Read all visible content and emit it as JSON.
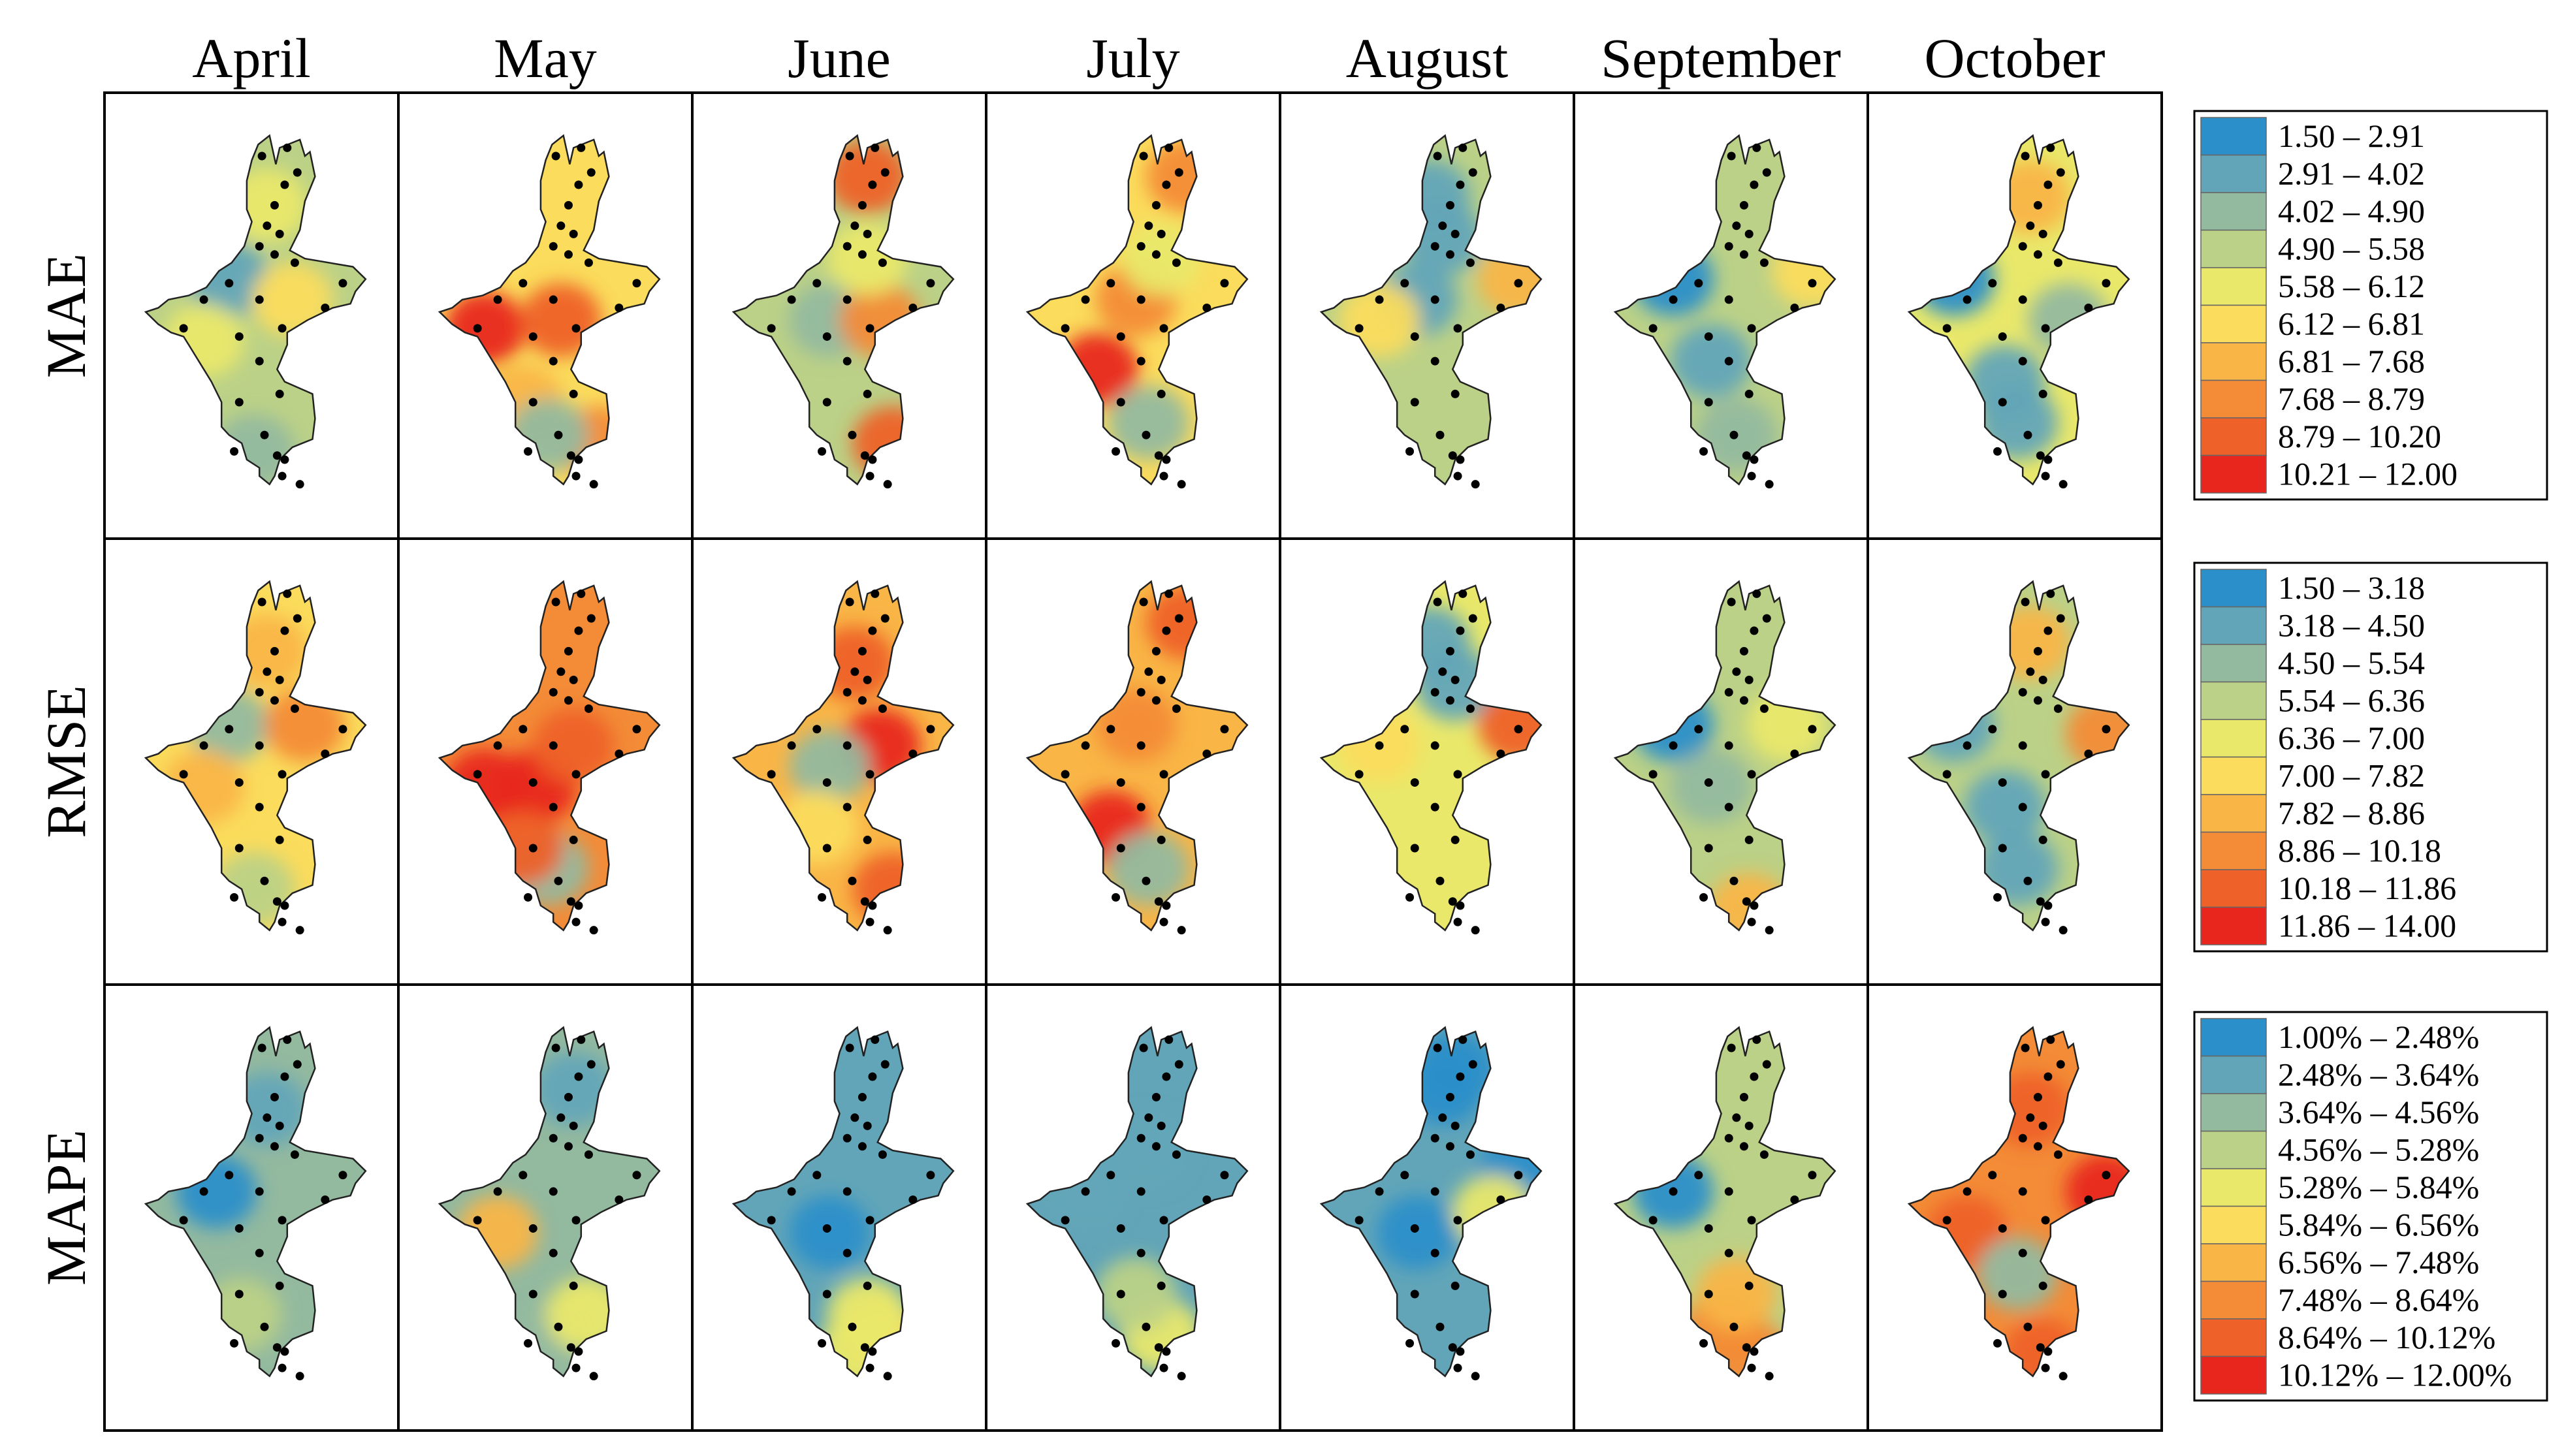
{
  "months": [
    "April",
    "May",
    "June",
    "July",
    "August",
    "September",
    "October"
  ],
  "metrics": [
    {
      "name": "MAE",
      "legend": [
        "1.50 – 2.91",
        "2.91 – 4.02",
        "4.02 – 4.90",
        "4.90 – 5.58",
        "5.58 – 6.12",
        "6.12 – 6.81",
        "6.81 – 7.68",
        "7.68 – 8.79",
        "8.79 – 10.20",
        "10.21 – 12.00"
      ]
    },
    {
      "name": "RMSE",
      "legend": [
        "1.50 – 3.18",
        "3.18 – 4.50",
        "4.50 – 5.54",
        "5.54 – 6.36",
        "6.36 – 7.00",
        "7.00 – 7.82",
        "7.82 – 8.86",
        "8.86 – 10.18",
        "10.18 – 11.86",
        "11.86 – 14.00"
      ]
    },
    {
      "name": "MAPE",
      "legend": [
        "1.00% – 2.48%",
        "2.48% – 3.64%",
        "3.64% – 4.56%",
        "4.56% – 5.28%",
        "5.28% – 5.84%",
        "5.84% – 6.56%",
        "6.56% – 7.48%",
        "7.48% – 8.64%",
        "8.64% – 10.12%",
        "10.12% – 12.00%"
      ]
    }
  ],
  "class_colors": [
    "#2b8fc9",
    "#62a5b8",
    "#93b99f",
    "#bbd187",
    "#e9e86a",
    "#fbdc5c",
    "#f9b546",
    "#f38b37",
    "#ee6128",
    "#e8261e"
  ],
  "base_class": [
    [
      3,
      5,
      3,
      5,
      3,
      3,
      4
    ],
    [
      5,
      7,
      6,
      6,
      4,
      3,
      3
    ],
    [
      2,
      2,
      1,
      1,
      1,
      3,
      7
    ]
  ],
  "hotspots": [
    [
      [
        [
          0.4,
          0.4,
          1
        ],
        [
          0.55,
          0.22,
          4
        ],
        [
          0.5,
          0.82,
          2
        ],
        [
          0.65,
          0.45,
          5
        ],
        [
          0.3,
          0.55,
          4
        ]
      ],
      [
        [
          0.25,
          0.52,
          9
        ],
        [
          0.55,
          0.5,
          8
        ],
        [
          0.7,
          0.8,
          7
        ],
        [
          0.4,
          0.7,
          6
        ],
        [
          0.5,
          0.78,
          2
        ]
      ],
      [
        [
          0.6,
          0.15,
          8
        ],
        [
          0.7,
          0.8,
          8
        ],
        [
          0.45,
          0.5,
          2
        ],
        [
          0.65,
          0.5,
          7
        ],
        [
          0.6,
          0.35,
          4
        ]
      ],
      [
        [
          0.35,
          0.62,
          9
        ],
        [
          0.5,
          0.45,
          7
        ],
        [
          0.55,
          0.75,
          2
        ],
        [
          0.7,
          0.15,
          7
        ],
        [
          0.6,
          0.35,
          4
        ]
      ],
      [
        [
          0.5,
          0.2,
          1
        ],
        [
          0.55,
          0.3,
          1
        ],
        [
          0.45,
          0.45,
          1
        ],
        [
          0.85,
          0.4,
          6
        ],
        [
          0.3,
          0.5,
          5
        ]
      ],
      [
        [
          0.3,
          0.4,
          0
        ],
        [
          0.45,
          0.6,
          1
        ],
        [
          0.55,
          0.78,
          2
        ],
        [
          0.85,
          0.38,
          5
        ]
      ],
      [
        [
          0.25,
          0.4,
          0
        ],
        [
          0.45,
          0.65,
          1
        ],
        [
          0.5,
          0.75,
          1
        ],
        [
          0.55,
          0.2,
          6
        ],
        [
          0.7,
          0.5,
          2
        ]
      ]
    ],
    [
      [
        [
          0.4,
          0.4,
          2
        ],
        [
          0.55,
          0.22,
          6
        ],
        [
          0.7,
          0.4,
          7
        ],
        [
          0.5,
          0.8,
          3
        ],
        [
          0.3,
          0.55,
          6
        ]
      ],
      [
        [
          0.25,
          0.55,
          9
        ],
        [
          0.45,
          0.55,
          9
        ],
        [
          0.6,
          0.45,
          8
        ],
        [
          0.5,
          0.75,
          2
        ],
        [
          0.4,
          0.7,
          8
        ]
      ],
      [
        [
          0.55,
          0.25,
          8
        ],
        [
          0.65,
          0.45,
          9
        ],
        [
          0.7,
          0.8,
          8
        ],
        [
          0.45,
          0.5,
          2
        ],
        [
          0.4,
          0.65,
          5
        ]
      ],
      [
        [
          0.4,
          0.65,
          9
        ],
        [
          0.5,
          0.4,
          7
        ],
        [
          0.55,
          0.75,
          2
        ],
        [
          0.7,
          0.15,
          8
        ]
      ],
      [
        [
          0.5,
          0.2,
          1
        ],
        [
          0.6,
          0.3,
          1
        ],
        [
          0.85,
          0.4,
          8
        ],
        [
          0.45,
          0.55,
          4
        ],
        [
          0.3,
          0.45,
          5
        ]
      ],
      [
        [
          0.3,
          0.4,
          0
        ],
        [
          0.45,
          0.55,
          2
        ],
        [
          0.6,
          0.85,
          6
        ],
        [
          0.75,
          0.4,
          4
        ]
      ],
      [
        [
          0.25,
          0.4,
          1
        ],
        [
          0.45,
          0.6,
          1
        ],
        [
          0.5,
          0.75,
          1
        ],
        [
          0.85,
          0.42,
          7
        ],
        [
          0.55,
          0.2,
          6
        ]
      ]
    ],
    [
      [
        [
          0.35,
          0.45,
          0
        ],
        [
          0.55,
          0.25,
          1
        ],
        [
          0.45,
          0.75,
          3
        ]
      ],
      [
        [
          0.3,
          0.55,
          6
        ],
        [
          0.5,
          0.8,
          2
        ],
        [
          0.6,
          0.2,
          1
        ],
        [
          0.65,
          0.75,
          4
        ]
      ],
      [
        [
          0.45,
          0.55,
          0
        ],
        [
          0.65,
          0.8,
          5
        ],
        [
          0.55,
          0.85,
          4
        ],
        [
          0.6,
          0.75,
          4
        ]
      ],
      [
        [
          0.3,
          0.45,
          1
        ],
        [
          0.55,
          0.35,
          1
        ],
        [
          0.6,
          0.8,
          4
        ],
        [
          0.5,
          0.7,
          3
        ]
      ],
      [
        [
          0.55,
          0.2,
          0
        ],
        [
          0.6,
          0.15,
          0
        ],
        [
          0.45,
          0.55,
          0
        ],
        [
          0.85,
          0.4,
          0
        ],
        [
          0.75,
          0.5,
          4
        ]
      ],
      [
        [
          0.3,
          0.45,
          0
        ],
        [
          0.5,
          0.78,
          7
        ],
        [
          0.6,
          0.85,
          7
        ],
        [
          0.55,
          0.7,
          6
        ]
      ],
      [
        [
          0.3,
          0.55,
          8
        ],
        [
          0.55,
          0.25,
          8
        ],
        [
          0.85,
          0.45,
          9
        ],
        [
          0.5,
          0.65,
          2
        ],
        [
          0.6,
          0.85,
          8
        ]
      ]
    ]
  ]
}
